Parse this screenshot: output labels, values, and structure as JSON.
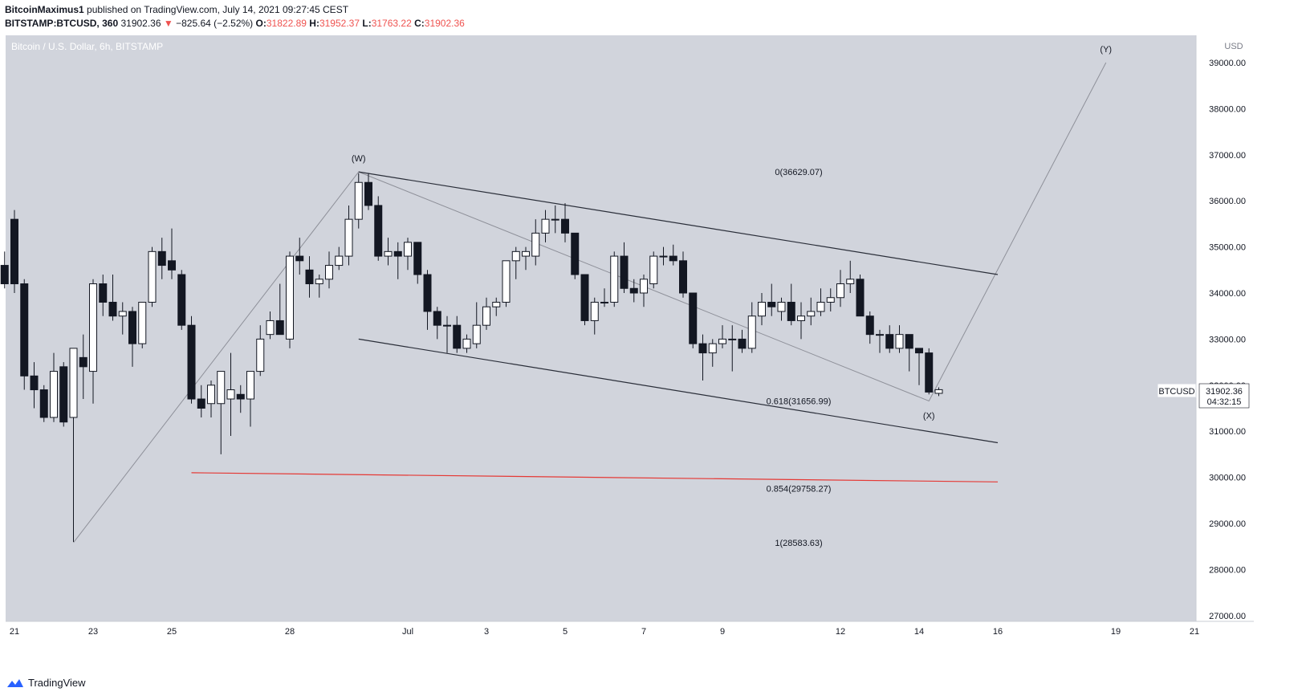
{
  "header": {
    "author": "BitcoinMaximus1",
    "published_text": " published on TradingView.com, July 14, 2021 09:27:45 CEST",
    "symbol": "BITSTAMP:BTCUSD, 360",
    "last": "31902.36",
    "change": "−825.64 (−2.52%)",
    "open_label": "O:",
    "open": "31822.89",
    "high_label": "H:",
    "high": "31952.37",
    "low_label": "L:",
    "low": "31763.22",
    "close_label": "C:",
    "close": "31902.36"
  },
  "chart_title": "Bitcoin / U.S. Dollar, 6h, BITSTAMP",
  "currency": "USD",
  "price_tag": {
    "symbol": "BTCUSD",
    "price": "31902.36",
    "countdown": "04:32:15"
  },
  "footer": {
    "brand": "TradingView"
  },
  "colors": {
    "chart_bg": "#d1d4dc",
    "up_candle": "#ffffff",
    "down_candle": "#131722",
    "channel_line": "#2a2e39",
    "wave_line": "#8e9099",
    "support_line": "#e53935"
  },
  "chart_data": {
    "type": "candlestick",
    "title": "Bitcoin / U.S. Dollar, 6h, BITSTAMP",
    "y_axis": {
      "ylim": [
        26800,
        39700
      ],
      "ticks": [
        "27000.00",
        "28000.00",
        "29000.00",
        "30000.00",
        "31000.00",
        "32000.00",
        "33000.00",
        "34000.00",
        "35000.00",
        "36000.00",
        "37000.00",
        "38000.00",
        "39000.00"
      ]
    },
    "x_axis": {
      "ticks": [
        {
          "label": "21",
          "date": "2021-06-21"
        },
        {
          "label": "23",
          "date": "2021-06-23"
        },
        {
          "label": "25",
          "date": "2021-06-25"
        },
        {
          "label": "28",
          "date": "2021-06-28"
        },
        {
          "label": "Jul",
          "date": "2021-07-01"
        },
        {
          "label": "3",
          "date": "2021-07-03"
        },
        {
          "label": "5",
          "date": "2021-07-05"
        },
        {
          "label": "7",
          "date": "2021-07-07"
        },
        {
          "label": "9",
          "date": "2021-07-09"
        },
        {
          "label": "12",
          "date": "2021-07-12"
        },
        {
          "label": "14",
          "date": "2021-07-14"
        },
        {
          "label": "16",
          "date": "2021-07-16"
        },
        {
          "label": "19",
          "date": "2021-07-19"
        },
        {
          "label": "21",
          "date": "2021-07-21"
        }
      ]
    },
    "candles": [
      {
        "t": "2021-06-20 18:00",
        "o": 34600,
        "h": 34900,
        "l": 34100,
        "c": 34200
      },
      {
        "t": "2021-06-21 00:00",
        "o": 35600,
        "h": 35800,
        "l": 34000,
        "c": 34200
      },
      {
        "t": "2021-06-21 06:00",
        "o": 34200,
        "h": 34300,
        "l": 31900,
        "c": 32200
      },
      {
        "t": "2021-06-21 12:00",
        "o": 32200,
        "h": 32500,
        "l": 31500,
        "c": 31900
      },
      {
        "t": "2021-06-21 18:00",
        "o": 31900,
        "h": 32000,
        "l": 31200,
        "c": 31300
      },
      {
        "t": "2021-06-22 00:00",
        "o": 31300,
        "h": 32700,
        "l": 31200,
        "c": 32300
      },
      {
        "t": "2021-06-22 06:00",
        "o": 32400,
        "h": 32500,
        "l": 31100,
        "c": 31200
      },
      {
        "t": "2021-06-22 12:00",
        "o": 31300,
        "h": 32800,
        "l": 28600,
        "c": 32800
      },
      {
        "t": "2021-06-22 18:00",
        "o": 32600,
        "h": 33100,
        "l": 31700,
        "c": 32400
      },
      {
        "t": "2021-06-23 00:00",
        "o": 32300,
        "h": 34300,
        "l": 31600,
        "c": 34200
      },
      {
        "t": "2021-06-23 06:00",
        "o": 34200,
        "h": 34400,
        "l": 33500,
        "c": 33800
      },
      {
        "t": "2021-06-23 12:00",
        "o": 33800,
        "h": 34400,
        "l": 33400,
        "c": 33500
      },
      {
        "t": "2021-06-23 18:00",
        "o": 33500,
        "h": 33800,
        "l": 33100,
        "c": 33600
      },
      {
        "t": "2021-06-24 00:00",
        "o": 33600,
        "h": 33700,
        "l": 32400,
        "c": 32900
      },
      {
        "t": "2021-06-24 06:00",
        "o": 32900,
        "h": 33800,
        "l": 32800,
        "c": 33800
      },
      {
        "t": "2021-06-24 12:00",
        "o": 33800,
        "h": 35000,
        "l": 33700,
        "c": 34900
      },
      {
        "t": "2021-06-24 18:00",
        "o": 34900,
        "h": 35200,
        "l": 34300,
        "c": 34600
      },
      {
        "t": "2021-06-25 00:00",
        "o": 34700,
        "h": 35400,
        "l": 34300,
        "c": 34500
      },
      {
        "t": "2021-06-25 06:00",
        "o": 34400,
        "h": 34500,
        "l": 33200,
        "c": 33300
      },
      {
        "t": "2021-06-25 12:00",
        "o": 33300,
        "h": 33500,
        "l": 31600,
        "c": 31700
      },
      {
        "t": "2021-06-25 18:00",
        "o": 31700,
        "h": 32000,
        "l": 31300,
        "c": 31500
      },
      {
        "t": "2021-06-26 00:00",
        "o": 31600,
        "h": 32100,
        "l": 31300,
        "c": 32000
      },
      {
        "t": "2021-06-26 06:00",
        "o": 31600,
        "h": 32300,
        "l": 30500,
        "c": 32300
      },
      {
        "t": "2021-06-26 12:00",
        "o": 31700,
        "h": 32700,
        "l": 30900,
        "c": 31900
      },
      {
        "t": "2021-06-26 18:00",
        "o": 31800,
        "h": 32000,
        "l": 31400,
        "c": 31700
      },
      {
        "t": "2021-06-27 00:00",
        "o": 31700,
        "h": 32300,
        "l": 31100,
        "c": 32300
      },
      {
        "t": "2021-06-27 06:00",
        "o": 32300,
        "h": 33300,
        "l": 32200,
        "c": 33000
      },
      {
        "t": "2021-06-27 12:00",
        "o": 33100,
        "h": 33600,
        "l": 33000,
        "c": 33400
      },
      {
        "t": "2021-06-27 18:00",
        "o": 33400,
        "h": 34200,
        "l": 33100,
        "c": 33100
      },
      {
        "t": "2021-06-28 00:00",
        "o": 33000,
        "h": 34900,
        "l": 32800,
        "c": 34800
      },
      {
        "t": "2021-06-28 06:00",
        "o": 34800,
        "h": 35200,
        "l": 34400,
        "c": 34700
      },
      {
        "t": "2021-06-28 12:00",
        "o": 34500,
        "h": 34800,
        "l": 33900,
        "c": 34200
      },
      {
        "t": "2021-06-28 18:00",
        "o": 34200,
        "h": 34400,
        "l": 33900,
        "c": 34300
      },
      {
        "t": "2021-06-29 00:00",
        "o": 34300,
        "h": 34900,
        "l": 34100,
        "c": 34600
      },
      {
        "t": "2021-06-29 06:00",
        "o": 34600,
        "h": 35000,
        "l": 34500,
        "c": 34800
      },
      {
        "t": "2021-06-29 12:00",
        "o": 34800,
        "h": 35900,
        "l": 34600,
        "c": 35600
      },
      {
        "t": "2021-06-29 18:00",
        "o": 35600,
        "h": 36600,
        "l": 35400,
        "c": 36400
      },
      {
        "t": "2021-06-30 00:00",
        "o": 36400,
        "h": 36600,
        "l": 35800,
        "c": 35900
      },
      {
        "t": "2021-06-30 06:00",
        "o": 35900,
        "h": 36100,
        "l": 34700,
        "c": 34800
      },
      {
        "t": "2021-06-30 12:00",
        "o": 34800,
        "h": 35200,
        "l": 34600,
        "c": 34900
      },
      {
        "t": "2021-06-30 18:00",
        "o": 34900,
        "h": 35100,
        "l": 34300,
        "c": 34800
      },
      {
        "t": "2021-07-01 00:00",
        "o": 34800,
        "h": 35200,
        "l": 34500,
        "c": 35100
      },
      {
        "t": "2021-07-01 06:00",
        "o": 35100,
        "h": 35100,
        "l": 34200,
        "c": 34400
      },
      {
        "t": "2021-07-01 12:00",
        "o": 34400,
        "h": 34500,
        "l": 33200,
        "c": 33600
      },
      {
        "t": "2021-07-01 18:00",
        "o": 33600,
        "h": 33700,
        "l": 33000,
        "c": 33300
      },
      {
        "t": "2021-07-02 00:00",
        "o": 33300,
        "h": 33500,
        "l": 32700,
        "c": 33300
      },
      {
        "t": "2021-07-02 06:00",
        "o": 33300,
        "h": 33500,
        "l": 32700,
        "c": 32800
      },
      {
        "t": "2021-07-02 12:00",
        "o": 32800,
        "h": 33100,
        "l": 32700,
        "c": 33000
      },
      {
        "t": "2021-07-02 18:00",
        "o": 32900,
        "h": 33800,
        "l": 32800,
        "c": 33300
      },
      {
        "t": "2021-07-03 00:00",
        "o": 33300,
        "h": 33900,
        "l": 33200,
        "c": 33700
      },
      {
        "t": "2021-07-03 06:00",
        "o": 33700,
        "h": 33900,
        "l": 33500,
        "c": 33800
      },
      {
        "t": "2021-07-03 12:00",
        "o": 33800,
        "h": 34700,
        "l": 33700,
        "c": 34700
      },
      {
        "t": "2021-07-03 18:00",
        "o": 34700,
        "h": 35000,
        "l": 34300,
        "c": 34900
      },
      {
        "t": "2021-07-04 00:00",
        "o": 34800,
        "h": 35000,
        "l": 34500,
        "c": 34900
      },
      {
        "t": "2021-07-04 06:00",
        "o": 34800,
        "h": 35600,
        "l": 34600,
        "c": 35300
      },
      {
        "t": "2021-07-04 12:00",
        "o": 35300,
        "h": 35800,
        "l": 35100,
        "c": 35600
      },
      {
        "t": "2021-07-04 18:00",
        "o": 35600,
        "h": 35900,
        "l": 35300,
        "c": 35600
      },
      {
        "t": "2021-07-05 00:00",
        "o": 35600,
        "h": 35950,
        "l": 35100,
        "c": 35300
      },
      {
        "t": "2021-07-05 06:00",
        "o": 35300,
        "h": 35300,
        "l": 34300,
        "c": 34400
      },
      {
        "t": "2021-07-05 12:00",
        "o": 34400,
        "h": 34400,
        "l": 33300,
        "c": 33400
      },
      {
        "t": "2021-07-05 18:00",
        "o": 33400,
        "h": 33900,
        "l": 33100,
        "c": 33800
      },
      {
        "t": "2021-07-06 00:00",
        "o": 33800,
        "h": 34100,
        "l": 33700,
        "c": 33800
      },
      {
        "t": "2021-07-06 06:00",
        "o": 33800,
        "h": 34900,
        "l": 33700,
        "c": 34800
      },
      {
        "t": "2021-07-06 12:00",
        "o": 34800,
        "h": 35100,
        "l": 34000,
        "c": 34100
      },
      {
        "t": "2021-07-06 18:00",
        "o": 34100,
        "h": 34300,
        "l": 33800,
        "c": 34000
      },
      {
        "t": "2021-07-07 00:00",
        "o": 34000,
        "h": 34400,
        "l": 33700,
        "c": 34300
      },
      {
        "t": "2021-07-07 06:00",
        "o": 34200,
        "h": 34900,
        "l": 34100,
        "c": 34800
      },
      {
        "t": "2021-07-07 12:00",
        "o": 34800,
        "h": 35000,
        "l": 34600,
        "c": 34800
      },
      {
        "t": "2021-07-07 18:00",
        "o": 34800,
        "h": 35050,
        "l": 34600,
        "c": 34700
      },
      {
        "t": "2021-07-08 00:00",
        "o": 34700,
        "h": 34900,
        "l": 33900,
        "c": 34000
      },
      {
        "t": "2021-07-08 06:00",
        "o": 34000,
        "h": 34000,
        "l": 32800,
        "c": 32900
      },
      {
        "t": "2021-07-08 12:00",
        "o": 32900,
        "h": 33100,
        "l": 32100,
        "c": 32700
      },
      {
        "t": "2021-07-08 18:00",
        "o": 32700,
        "h": 33000,
        "l": 32400,
        "c": 32900
      },
      {
        "t": "2021-07-09 00:00",
        "o": 32900,
        "h": 33300,
        "l": 32800,
        "c": 33000
      },
      {
        "t": "2021-07-09 06:00",
        "o": 33000,
        "h": 33300,
        "l": 32300,
        "c": 33000
      },
      {
        "t": "2021-07-09 12:00",
        "o": 33000,
        "h": 33200,
        "l": 32700,
        "c": 32800
      },
      {
        "t": "2021-07-09 18:00",
        "o": 32800,
        "h": 33800,
        "l": 32700,
        "c": 33500
      },
      {
        "t": "2021-07-10 00:00",
        "o": 33500,
        "h": 34000,
        "l": 33300,
        "c": 33800
      },
      {
        "t": "2021-07-10 06:00",
        "o": 33800,
        "h": 34200,
        "l": 33500,
        "c": 33700
      },
      {
        "t": "2021-07-10 12:00",
        "o": 33600,
        "h": 33900,
        "l": 33400,
        "c": 33800
      },
      {
        "t": "2021-07-10 18:00",
        "o": 33800,
        "h": 34200,
        "l": 33300,
        "c": 33400
      },
      {
        "t": "2021-07-11 00:00",
        "o": 33400,
        "h": 33800,
        "l": 33000,
        "c": 33500
      },
      {
        "t": "2021-07-11 06:00",
        "o": 33500,
        "h": 33900,
        "l": 33300,
        "c": 33600
      },
      {
        "t": "2021-07-11 12:00",
        "o": 33600,
        "h": 34100,
        "l": 33500,
        "c": 33800
      },
      {
        "t": "2021-07-11 18:00",
        "o": 33800,
        "h": 34100,
        "l": 33600,
        "c": 33900
      },
      {
        "t": "2021-07-12 00:00",
        "o": 33900,
        "h": 34500,
        "l": 33700,
        "c": 34200
      },
      {
        "t": "2021-07-12 06:00",
        "o": 34200,
        "h": 34700,
        "l": 34000,
        "c": 34300
      },
      {
        "t": "2021-07-12 12:00",
        "o": 34300,
        "h": 34400,
        "l": 33500,
        "c": 33500
      },
      {
        "t": "2021-07-12 18:00",
        "o": 33500,
        "h": 33600,
        "l": 32900,
        "c": 33100
      },
      {
        "t": "2021-07-13 00:00",
        "o": 33100,
        "h": 33200,
        "l": 32700,
        "c": 33100
      },
      {
        "t": "2021-07-13 06:00",
        "o": 33100,
        "h": 33300,
        "l": 32700,
        "c": 32800
      },
      {
        "t": "2021-07-13 12:00",
        "o": 32800,
        "h": 33300,
        "l": 32700,
        "c": 33100
      },
      {
        "t": "2021-07-13 18:00",
        "o": 33100,
        "h": 33100,
        "l": 32300,
        "c": 32800
      },
      {
        "t": "2021-07-14 00:00",
        "o": 32800,
        "h": 32800,
        "l": 32000,
        "c": 32700
      },
      {
        "t": "2021-07-14 06:00",
        "o": 32700,
        "h": 32800,
        "l": 31800,
        "c": 31850
      },
      {
        "t": "2021-07-14 12:00",
        "o": 31822.89,
        "h": 31952.37,
        "l": 31763.22,
        "c": 31902.36
      }
    ],
    "annotations": [
      {
        "text": "(W)",
        "x": "2021-06-29 18:00",
        "y": 36629
      },
      {
        "text": "(X)",
        "x": "2021-07-14 06:00",
        "y": 31656
      },
      {
        "text": "(Y)",
        "x": "2021-07-18 18:00",
        "y": 39000
      },
      {
        "text": "0(36629.07)",
        "level": 36629.07
      },
      {
        "text": "0.618(31656.99)",
        "level": 31656.99
      },
      {
        "text": "0.854(29758.27)",
        "level": 29758.27
      },
      {
        "text": "1(28583.63)",
        "level": 28583.63
      }
    ],
    "lines": {
      "wave": [
        [
          "2021-06-22 12:00",
          28583.63
        ],
        [
          "2021-06-29 18:00",
          36629.07
        ],
        [
          "2021-07-14 06:00",
          31656.99
        ],
        [
          "2021-07-18 18:00",
          39000
        ]
      ],
      "channel_upper": [
        [
          "2021-06-29 18:00",
          36629
        ],
        [
          "2021-07-16 00:00",
          34400
        ]
      ],
      "channel_lower": [
        [
          "2021-06-29 18:00",
          33000
        ],
        [
          "2021-07-16 00:00",
          30750
        ]
      ],
      "support": [
        [
          "2021-06-25 12:00",
          30100
        ],
        [
          "2021-07-16 00:00",
          29900
        ]
      ]
    },
    "last_price": 31902.36
  }
}
